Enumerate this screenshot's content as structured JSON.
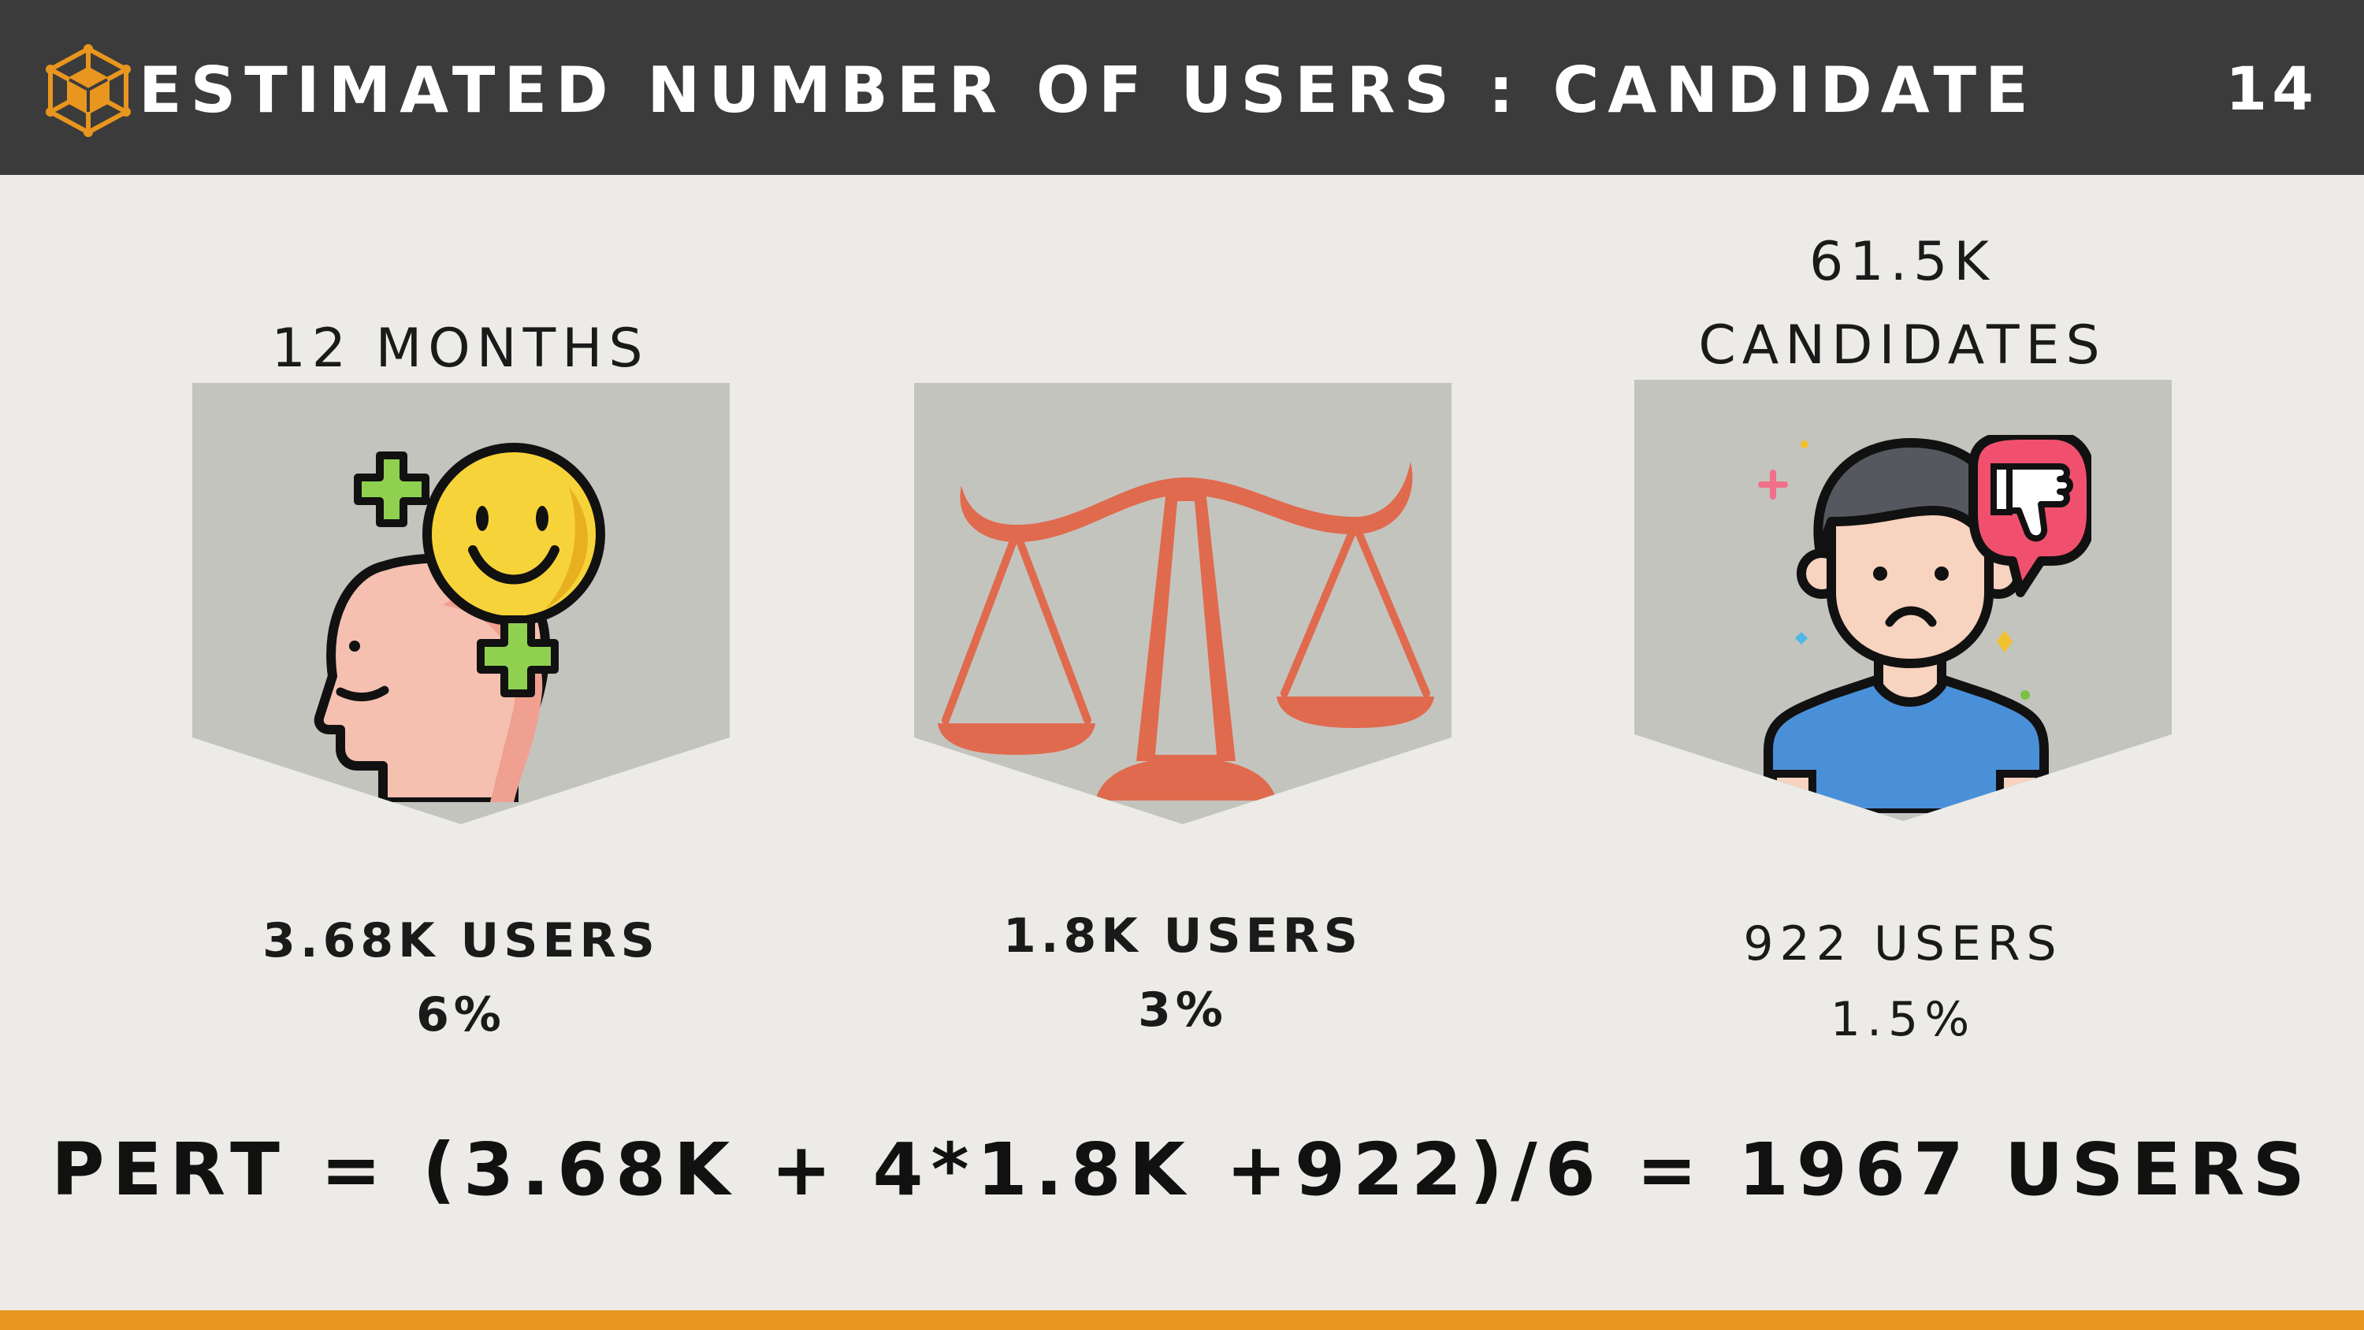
{
  "header": {
    "title": "ESTIMATED NUMBER OF USERS : CANDIDATE",
    "page_number": "14",
    "logo_icon": "cube-network-icon"
  },
  "cards": [
    {
      "top_label": "12 MONTHS",
      "icon": "happy-head-icon",
      "users": "3.68K USERS",
      "percent": "6%"
    },
    {
      "icon": "balance-scale-icon",
      "users": "1.8K USERS",
      "percent": "3%"
    },
    {
      "top_label_line1": "61.5K",
      "top_label_line2": "CANDIDATES",
      "icon": "sad-person-thumbs-down-icon",
      "users": "922 USERS",
      "percent": "1.5%"
    }
  ],
  "formula": "PERT = (3.68K + 4*1.8K +922)/6 = 1967 USERS",
  "colors": {
    "header_bg": "#3B3B3B",
    "background": "#ECEBE7",
    "panel": "#C4C4BE",
    "accent_orange": "#E8961E",
    "scale_red": "#E06A4E"
  }
}
